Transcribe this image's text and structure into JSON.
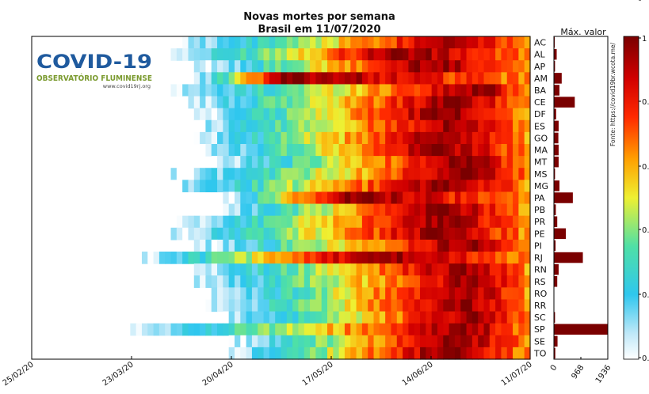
{
  "chart_data": {
    "type": "heatmap",
    "title": "Novas mortes por semana",
    "subtitle": "Brasil em 11/07/2020",
    "x_tick_labels": [
      "25/02/20",
      "23/03/20",
      "20/04/20",
      "17/05/20",
      "14/06/20",
      "11/07/20"
    ],
    "states": [
      "AC",
      "AL",
      "AP",
      "AM",
      "BA",
      "CE",
      "DF",
      "ES",
      "GO",
      "MA",
      "MT",
      "MS",
      "MG",
      "PA",
      "PB",
      "PR",
      "PE",
      "PI",
      "RJ",
      "RN",
      "RS",
      "RO",
      "RR",
      "SC",
      "SP",
      "SE",
      "TO"
    ],
    "start_col": [
      26,
      24,
      28,
      28,
      24,
      26,
      28,
      28,
      28,
      29,
      31,
      24,
      24,
      33,
      31,
      25,
      24,
      28,
      18,
      28,
      28,
      31,
      30,
      33,
      17,
      34,
      34
    ],
    "peak_col": [
      72,
      62,
      68,
      43,
      77,
      72,
      70,
      72,
      70,
      70,
      74,
      76,
      70,
      53,
      70,
      70,
      70,
      74,
      58,
      74,
      76,
      74,
      74,
      76,
      74,
      72,
      70
    ],
    "max_bar": {
      "title": "Máx. valor",
      "ticks": [
        "0",
        "968",
        "1936"
      ],
      "max": 1936,
      "values": [
        30,
        100,
        40,
        280,
        200,
        750,
        80,
        170,
        160,
        170,
        170,
        40,
        200,
        680,
        70,
        120,
        430,
        60,
        1040,
        170,
        120,
        10,
        10,
        40,
        1936,
        130,
        50
      ]
    },
    "colorbar": {
      "top_label": "1",
      "bottom_label": "0",
      "mid_labels": [
        "0.",
        "0.",
        "0.",
        "0.",
        "0."
      ]
    },
    "source": "Fonte: https://covid19br.wcota.me/"
  },
  "logo": {
    "title": "COVID-19",
    "subtitle": "OBSERVATÓRIO FLUMINENSE",
    "url": "www.covid19rj.org"
  }
}
